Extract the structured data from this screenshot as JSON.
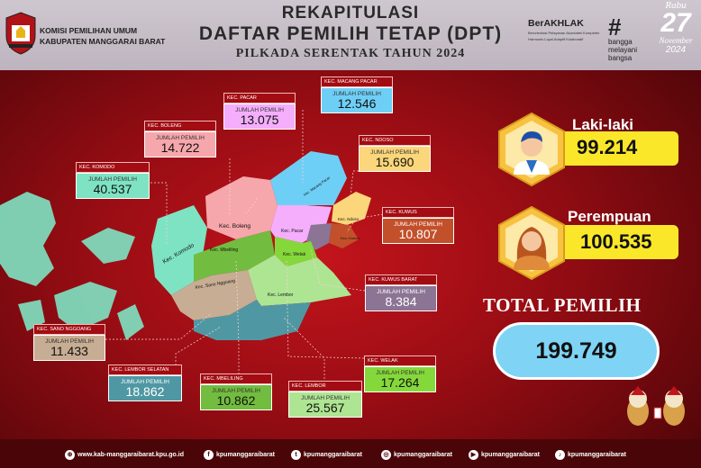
{
  "header": {
    "org_line1": "KOMISI PEMILIHAN UMUM",
    "org_line2": "KABUPATEN MANGGARAI BARAT",
    "title1": "REKAPITULASI",
    "title2": "DAFTAR PEMILIH TETAP (DPT)",
    "title3": "PILKADA SERENTAK TAHUN 2024",
    "berakhlak": "BerAKHLAK",
    "berakhlak_sub1": "Berorientasi Pelayanan Akuntabel Kompeten",
    "berakhlak_sub2": "Harmonis Loyal Adaptif Kolaboratif",
    "bangga_1": "bangga",
    "bangga_2": "melayani",
    "bangga_3": "bangsa",
    "day": "Rabu",
    "date_num": "27",
    "month": "November",
    "year": "2024"
  },
  "map_labels": {
    "boleng": "Kec. Boleng",
    "komodo": "Kec. Komodo",
    "mbeliling": "Kec. Mbeliling",
    "sano": "Kec. Sano Nggoang",
    "pacar": "Kec. Pacar",
    "welak": "Kec. Welak",
    "lembor": "Kec. Lembor",
    "ndoso": "Kec. Ndoso",
    "macang": "Kec. Macang Pacar",
    "kuwus": "Kec. Kuwus"
  },
  "districts": [
    {
      "name": "KEC. PACAR",
      "label": "JUMLAH PEMILIH",
      "value": "13.075",
      "color": "#f4aefc"
    },
    {
      "name": "KEC. MACANG PACAR",
      "label": "JUMLAH PEMILIH",
      "value": "12.546",
      "color": "#6ecff6"
    },
    {
      "name": "KEC. BOLENG",
      "label": "JUMLAH PEMILIH",
      "value": "14.722",
      "color": "#f6a7ab"
    },
    {
      "name": "KEC. NDOSO",
      "label": "JUMLAH PEMILIH",
      "value": "15.690",
      "color": "#fbd67a"
    },
    {
      "name": "KEC. KOMODO",
      "label": "JUMLAH PEMILIH",
      "value": "40.537",
      "color": "#7ee3c3"
    },
    {
      "name": "KEC. KUWUS",
      "label": "JUMLAH PEMILIH",
      "value": "10.807",
      "color": "#c2502a"
    },
    {
      "name": "KEC. KUWUS BARAT",
      "label": "JUMLAH PEMILIH",
      "value": "8.384",
      "color": "#8b7494"
    },
    {
      "name": "KEC. SANO NGGOANG",
      "label": "JUMLAH PEMILIH",
      "value": "11.433",
      "color": "#c7ad93"
    },
    {
      "name": "KEC. WELAK",
      "label": "JUMLAH PEMILIH",
      "value": "17.264",
      "color": "#85d83a"
    },
    {
      "name": "KEC. LEMBOR SELATAN",
      "label": "JUMLAH PEMILIH",
      "value": "18.862",
      "color": "#4f98a3"
    },
    {
      "name": "KEC. MBELILING",
      "label": "JUMLAH PEMILIH",
      "value": "10.862",
      "color": "#72bc3f"
    },
    {
      "name": "KEC. LEMBOR",
      "label": "JUMLAH PEMILIH",
      "value": "25.567",
      "color": "#aee593"
    }
  ],
  "male": {
    "label": "Laki-laki",
    "value": "99.214"
  },
  "female": {
    "label": "Perempuan",
    "value": "100.535"
  },
  "total": {
    "label": "TOTAL PEMILIH",
    "value": "199.749"
  },
  "footer": {
    "website": "www.kab-manggaraibarat.kpu.go.id",
    "facebook": "kpumanggaraibarat",
    "twitter": "kpumanggaraibarat",
    "instagram": "kpumanggaraibarat",
    "youtube": "kpumanggaraibarat",
    "tiktok": "kpumanggaraibarat"
  },
  "colors": {
    "accent_yellow": "#fbe72a",
    "total_blue": "#7fd4f5",
    "dark_red": "#4a0508"
  }
}
